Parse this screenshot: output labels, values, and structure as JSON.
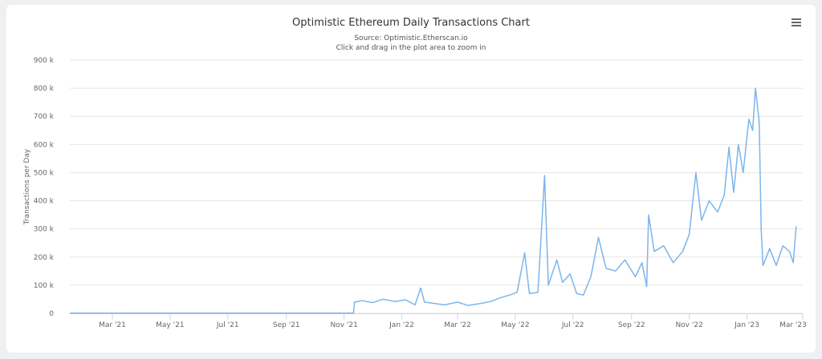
{
  "chart_data": {
    "type": "line",
    "title": "Optimistic Ethereum Daily Transactions Chart",
    "subtitle": "Source: Optimistic.Etherscan.io",
    "hint": "Click and drag in the plot area to zoom in",
    "y_label": "Transactions per Day",
    "grid": true,
    "x": [
      "2021-01-15",
      "2021-06-01",
      "2021-11-11",
      "2021-11-12",
      "2021-11-20",
      "2021-12-01",
      "2021-12-12",
      "2021-12-25",
      "2022-01-05",
      "2022-01-15",
      "2022-01-21",
      "2022-01-25",
      "2022-02-05",
      "2022-02-15",
      "2022-03-01",
      "2022-03-12",
      "2022-03-25",
      "2022-04-05",
      "2022-04-15",
      "2022-04-25",
      "2022-05-03",
      "2022-05-11",
      "2022-05-16",
      "2022-05-25",
      "2022-06-01",
      "2022-06-05",
      "2022-06-14",
      "2022-06-20",
      "2022-06-28",
      "2022-07-05",
      "2022-07-12",
      "2022-07-20",
      "2022-07-28",
      "2022-08-05",
      "2022-08-15",
      "2022-08-25",
      "2022-09-05",
      "2022-09-12",
      "2022-09-17",
      "2022-09-19",
      "2022-09-25",
      "2022-10-05",
      "2022-10-15",
      "2022-10-25",
      "2022-11-01",
      "2022-11-08",
      "2022-11-14",
      "2022-11-22",
      "2022-12-01",
      "2022-12-08",
      "2022-12-13",
      "2022-12-18",
      "2022-12-23",
      "2022-12-28",
      "2023-01-03",
      "2023-01-07",
      "2023-01-10",
      "2023-01-14",
      "2023-01-16",
      "2023-01-18",
      "2023-01-25",
      "2023-02-01",
      "2023-02-08",
      "2023-02-15",
      "2023-02-19",
      "2023-02-22"
    ],
    "series": [
      {
        "name": "Transactions per Day",
        "color": "#7cb5ec",
        "values": [
          500,
          500,
          500,
          40000,
          45000,
          38000,
          50000,
          42000,
          48000,
          30000,
          90000,
          40000,
          35000,
          30000,
          40000,
          28000,
          35000,
          42000,
          55000,
          65000,
          75000,
          215000,
          70000,
          75000,
          490000,
          100000,
          190000,
          110000,
          140000,
          70000,
          65000,
          130000,
          270000,
          160000,
          150000,
          190000,
          130000,
          180000,
          95000,
          350000,
          220000,
          240000,
          180000,
          220000,
          280000,
          500000,
          330000,
          400000,
          360000,
          420000,
          590000,
          430000,
          600000,
          500000,
          690000,
          650000,
          800000,
          680000,
          300000,
          170000,
          230000,
          170000,
          240000,
          220000,
          180000,
          310000
        ]
      }
    ],
    "xlim": [
      "2021-01-15",
      "2023-03-01"
    ],
    "xticks": [
      {
        "value": "2021-03-01",
        "label": "Mar '21"
      },
      {
        "value": "2021-05-01",
        "label": "May '21"
      },
      {
        "value": "2021-07-01",
        "label": "Jul '21"
      },
      {
        "value": "2021-09-01",
        "label": "Sep '21"
      },
      {
        "value": "2021-11-01",
        "label": "Nov '21"
      },
      {
        "value": "2022-01-01",
        "label": "Jan '22"
      },
      {
        "value": "2022-03-01",
        "label": "Mar '22"
      },
      {
        "value": "2022-05-01",
        "label": "May '22"
      },
      {
        "value": "2022-07-01",
        "label": "Jul '22"
      },
      {
        "value": "2022-09-01",
        "label": "Sep '22"
      },
      {
        "value": "2022-11-01",
        "label": "Nov '22"
      },
      {
        "value": "2023-01-01",
        "label": "Jan '23"
      },
      {
        "value": "2023-03-01",
        "label": "Mar '23"
      }
    ],
    "ylim": [
      0,
      900000
    ],
    "yticks": [
      0,
      {
        "value": 100000,
        "label": "100 k"
      },
      {
        "value": 200000,
        "label": "200 k"
      },
      {
        "value": 300000,
        "label": "300 k"
      },
      {
        "value": 400000,
        "label": "400 k"
      },
      {
        "value": 500000,
        "label": "500 k"
      },
      {
        "value": 600000,
        "label": "600 k"
      },
      {
        "value": 700000,
        "label": "700 k"
      },
      {
        "value": 800000,
        "label": "800 k"
      },
      {
        "value": 900000,
        "label": "900 k"
      }
    ]
  }
}
